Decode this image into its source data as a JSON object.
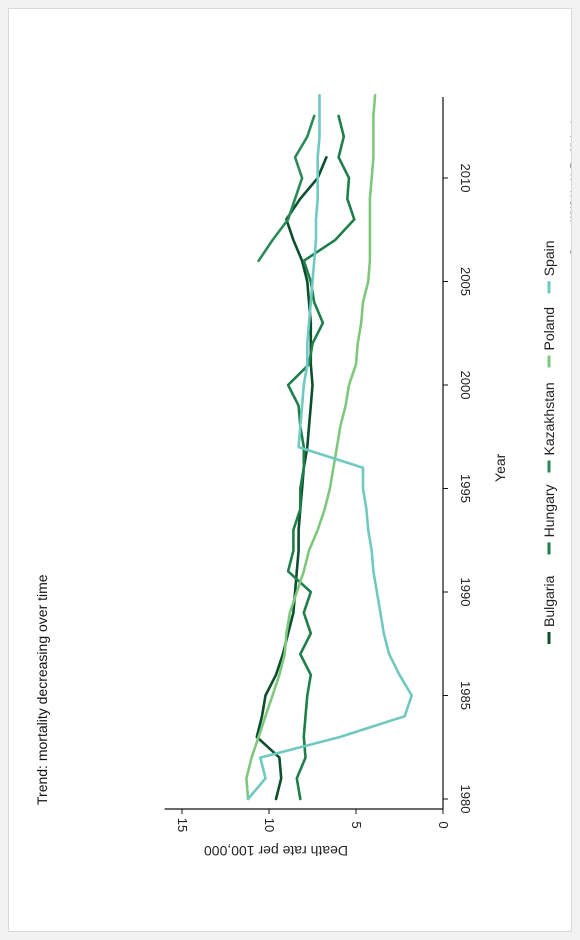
{
  "chart_data": {
    "type": "line",
    "orientation": "rotated 90° clockwise",
    "title": "Trend: mortality decreasing over time",
    "xlabel": "Year",
    "ylabel": "Death rate per 100,000",
    "source": "Source: WHO Health For All database",
    "xlim": [
      1979.5,
      2014
    ],
    "ylim": [
      0,
      16
    ],
    "xticks": [
      1980,
      1985,
      1990,
      1995,
      2000,
      2005,
      2010
    ],
    "yticks": [
      0,
      5,
      10,
      15
    ],
    "legend_position": "bottom",
    "series": [
      {
        "name": "Bulgaria",
        "color": "#0b4f2e",
        "x": [
          1980,
          1981,
          1982,
          1983,
          1984,
          1985,
          1986,
          1987,
          1988,
          1989,
          1990,
          1991,
          1992,
          1993,
          1994,
          1995,
          1996,
          1997,
          1998,
          1999,
          2000,
          2001,
          2002,
          2003,
          2004,
          2005,
          2006,
          2007,
          2008,
          2009,
          2010,
          2011
        ],
        "y": [
          9.6,
          9.3,
          9.4,
          10.7,
          10.4,
          10.2,
          9.6,
          9.2,
          8.9,
          8.6,
          8.5,
          8.4,
          8.3,
          8.3,
          8.2,
          8.1,
          8.0,
          7.8,
          7.7,
          7.6,
          7.5,
          7.6,
          7.6,
          7.6,
          7.7,
          7.8,
          8.1,
          8.6,
          9.0,
          8.2,
          7.2,
          6.7
        ]
      },
      {
        "name": "Hungary",
        "color": "#1e7f4a",
        "x": [
          1980,
          1981,
          1982,
          1983,
          1984,
          1985,
          1986,
          1987,
          1988,
          1989,
          1990,
          1991,
          1992,
          1993,
          1994,
          1995,
          1996,
          1997,
          1998,
          1999,
          2000,
          2001,
          2002,
          2003,
          2004,
          2005,
          2006,
          2007,
          2008,
          2009,
          2010,
          2011,
          2012,
          2013
        ],
        "y": [
          8.2,
          8.4,
          7.9,
          8.0,
          7.9,
          7.8,
          7.6,
          8.2,
          7.6,
          8.0,
          7.6,
          8.9,
          8.6,
          8.6,
          8.2,
          8.2,
          8.0,
          8.0,
          8.2,
          8.3,
          8.9,
          7.7,
          7.5,
          6.9,
          7.4,
          7.6,
          8.0,
          6.2,
          5.1,
          5.5,
          5.4,
          6.0,
          5.7,
          6.0
        ]
      },
      {
        "name": "Kazakhstan",
        "color": "#2a8b58",
        "x": [
          2006,
          2007,
          2008,
          2009,
          2010,
          2011,
          2012,
          2013
        ],
        "y": [
          10.6,
          9.8,
          8.9,
          8.5,
          8.1,
          8.5,
          7.8,
          7.4
        ]
      },
      {
        "name": "Poland",
        "color": "#7ec87e",
        "x": [
          1980,
          1981,
          1982,
          1983,
          1984,
          1985,
          1986,
          1987,
          1988,
          1989,
          1990,
          1991,
          1992,
          1993,
          1994,
          1995,
          1996,
          1997,
          1998,
          1999,
          2000,
          2001,
          2002,
          2003,
          2004,
          2005,
          2006,
          2007,
          2008,
          2009,
          2010,
          2011,
          2012,
          2013,
          2014
        ],
        "y": [
          11.2,
          11.3,
          11.0,
          10.6,
          10.2,
          9.8,
          9.4,
          9.1,
          9.0,
          8.8,
          8.4,
          8.0,
          7.7,
          7.2,
          6.8,
          6.5,
          6.3,
          6.1,
          5.9,
          5.6,
          5.4,
          5.0,
          4.9,
          4.7,
          4.6,
          4.3,
          4.2,
          4.2,
          4.2,
          4.2,
          4.1,
          4.0,
          4.0,
          4.0,
          3.9
        ]
      },
      {
        "name": "Spain",
        "color": "#6fc9c0",
        "x": [
          1980,
          1981,
          1982,
          1983,
          1984,
          1985,
          1986,
          1987,
          1988,
          1989,
          1990,
          1991,
          1992,
          1993,
          1994,
          1995,
          1996,
          1997,
          1998,
          1999,
          2000,
          2001,
          2002,
          2003,
          2004,
          2005,
          2006,
          2007,
          2008,
          2009,
          2010,
          2011,
          2012,
          2013,
          2014
        ],
        "y": [
          11.2,
          10.2,
          10.5,
          5.9,
          2.2,
          1.8,
          2.5,
          3.1,
          3.4,
          3.6,
          3.8,
          4.0,
          4.1,
          4.3,
          4.4,
          4.6,
          4.6,
          8.3,
          8.2,
          8.1,
          8.0,
          7.8,
          7.8,
          7.7,
          7.6,
          7.5,
          7.4,
          7.3,
          7.3,
          7.2,
          7.2,
          7.2,
          7.1,
          7.1,
          7.1
        ]
      }
    ]
  }
}
